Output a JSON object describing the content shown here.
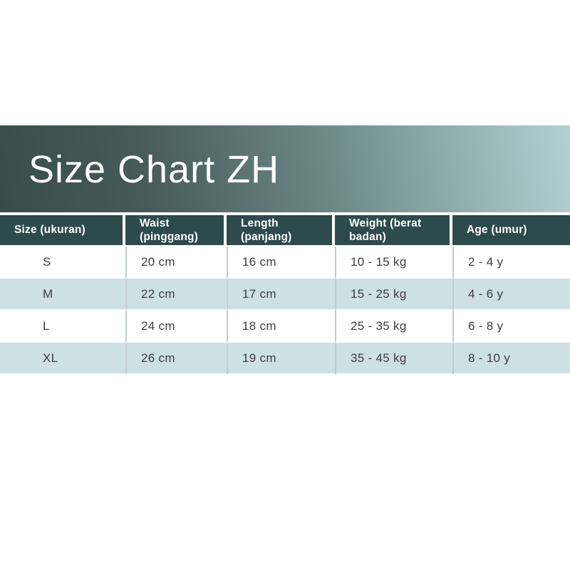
{
  "theme": {
    "page_bg": "#ffffff",
    "banner_gradient_start": "#384c4b",
    "banner_gradient_end": "#b5d0d2",
    "header_bg": "#2d4a4d",
    "header_text": "#ffffff",
    "row_bg": "#ffffff",
    "row_alt_bg": "#cde0e3",
    "body_text": "#3d3d3d",
    "divider": "#c3cbcc"
  },
  "banner": {
    "title": "Size Chart ZH"
  },
  "table": {
    "headers": [
      {
        "label": "Size (ukuran)"
      },
      {
        "label": "Waist\n(pinggang)"
      },
      {
        "label": "Length (panjang)"
      },
      {
        "label": "Weight (berat\nbadan)"
      },
      {
        "label": "Age (umur)"
      }
    ],
    "rows": [
      {
        "size": "S",
        "waist": "20 cm",
        "length": "16 cm",
        "weight": "10 - 15 kg",
        "age": "2 - 4 y"
      },
      {
        "size": "M",
        "waist": "22 cm",
        "length": "17 cm",
        "weight": "15 - 25 kg",
        "age": "4 - 6 y"
      },
      {
        "size": "L",
        "waist": "24 cm",
        "length": "18 cm",
        "weight": "25 - 35 kg",
        "age": "6 - 8 y"
      },
      {
        "size": "XL",
        "waist": "26 cm",
        "length": "19 cm",
        "weight": "35 - 45 kg",
        "age": "8 - 10 y"
      }
    ]
  },
  "chart_data": {
    "type": "table",
    "title": "Size Chart ZH",
    "columns": [
      "Size (ukuran)",
      "Waist (pinggang)",
      "Length (panjang)",
      "Weight (berat badan)",
      "Age (umur)"
    ],
    "rows": [
      [
        "S",
        "20 cm",
        "16 cm",
        "10 - 15 kg",
        "2 - 4 y"
      ],
      [
        "M",
        "22 cm",
        "17 cm",
        "15 - 25 kg",
        "4 - 6 y"
      ],
      [
        "L",
        "24 cm",
        "18 cm",
        "25 - 35 kg",
        "6 - 8 y"
      ],
      [
        "XL",
        "26 cm",
        "19 cm",
        "35 - 45 kg",
        "8 - 10 y"
      ]
    ]
  }
}
